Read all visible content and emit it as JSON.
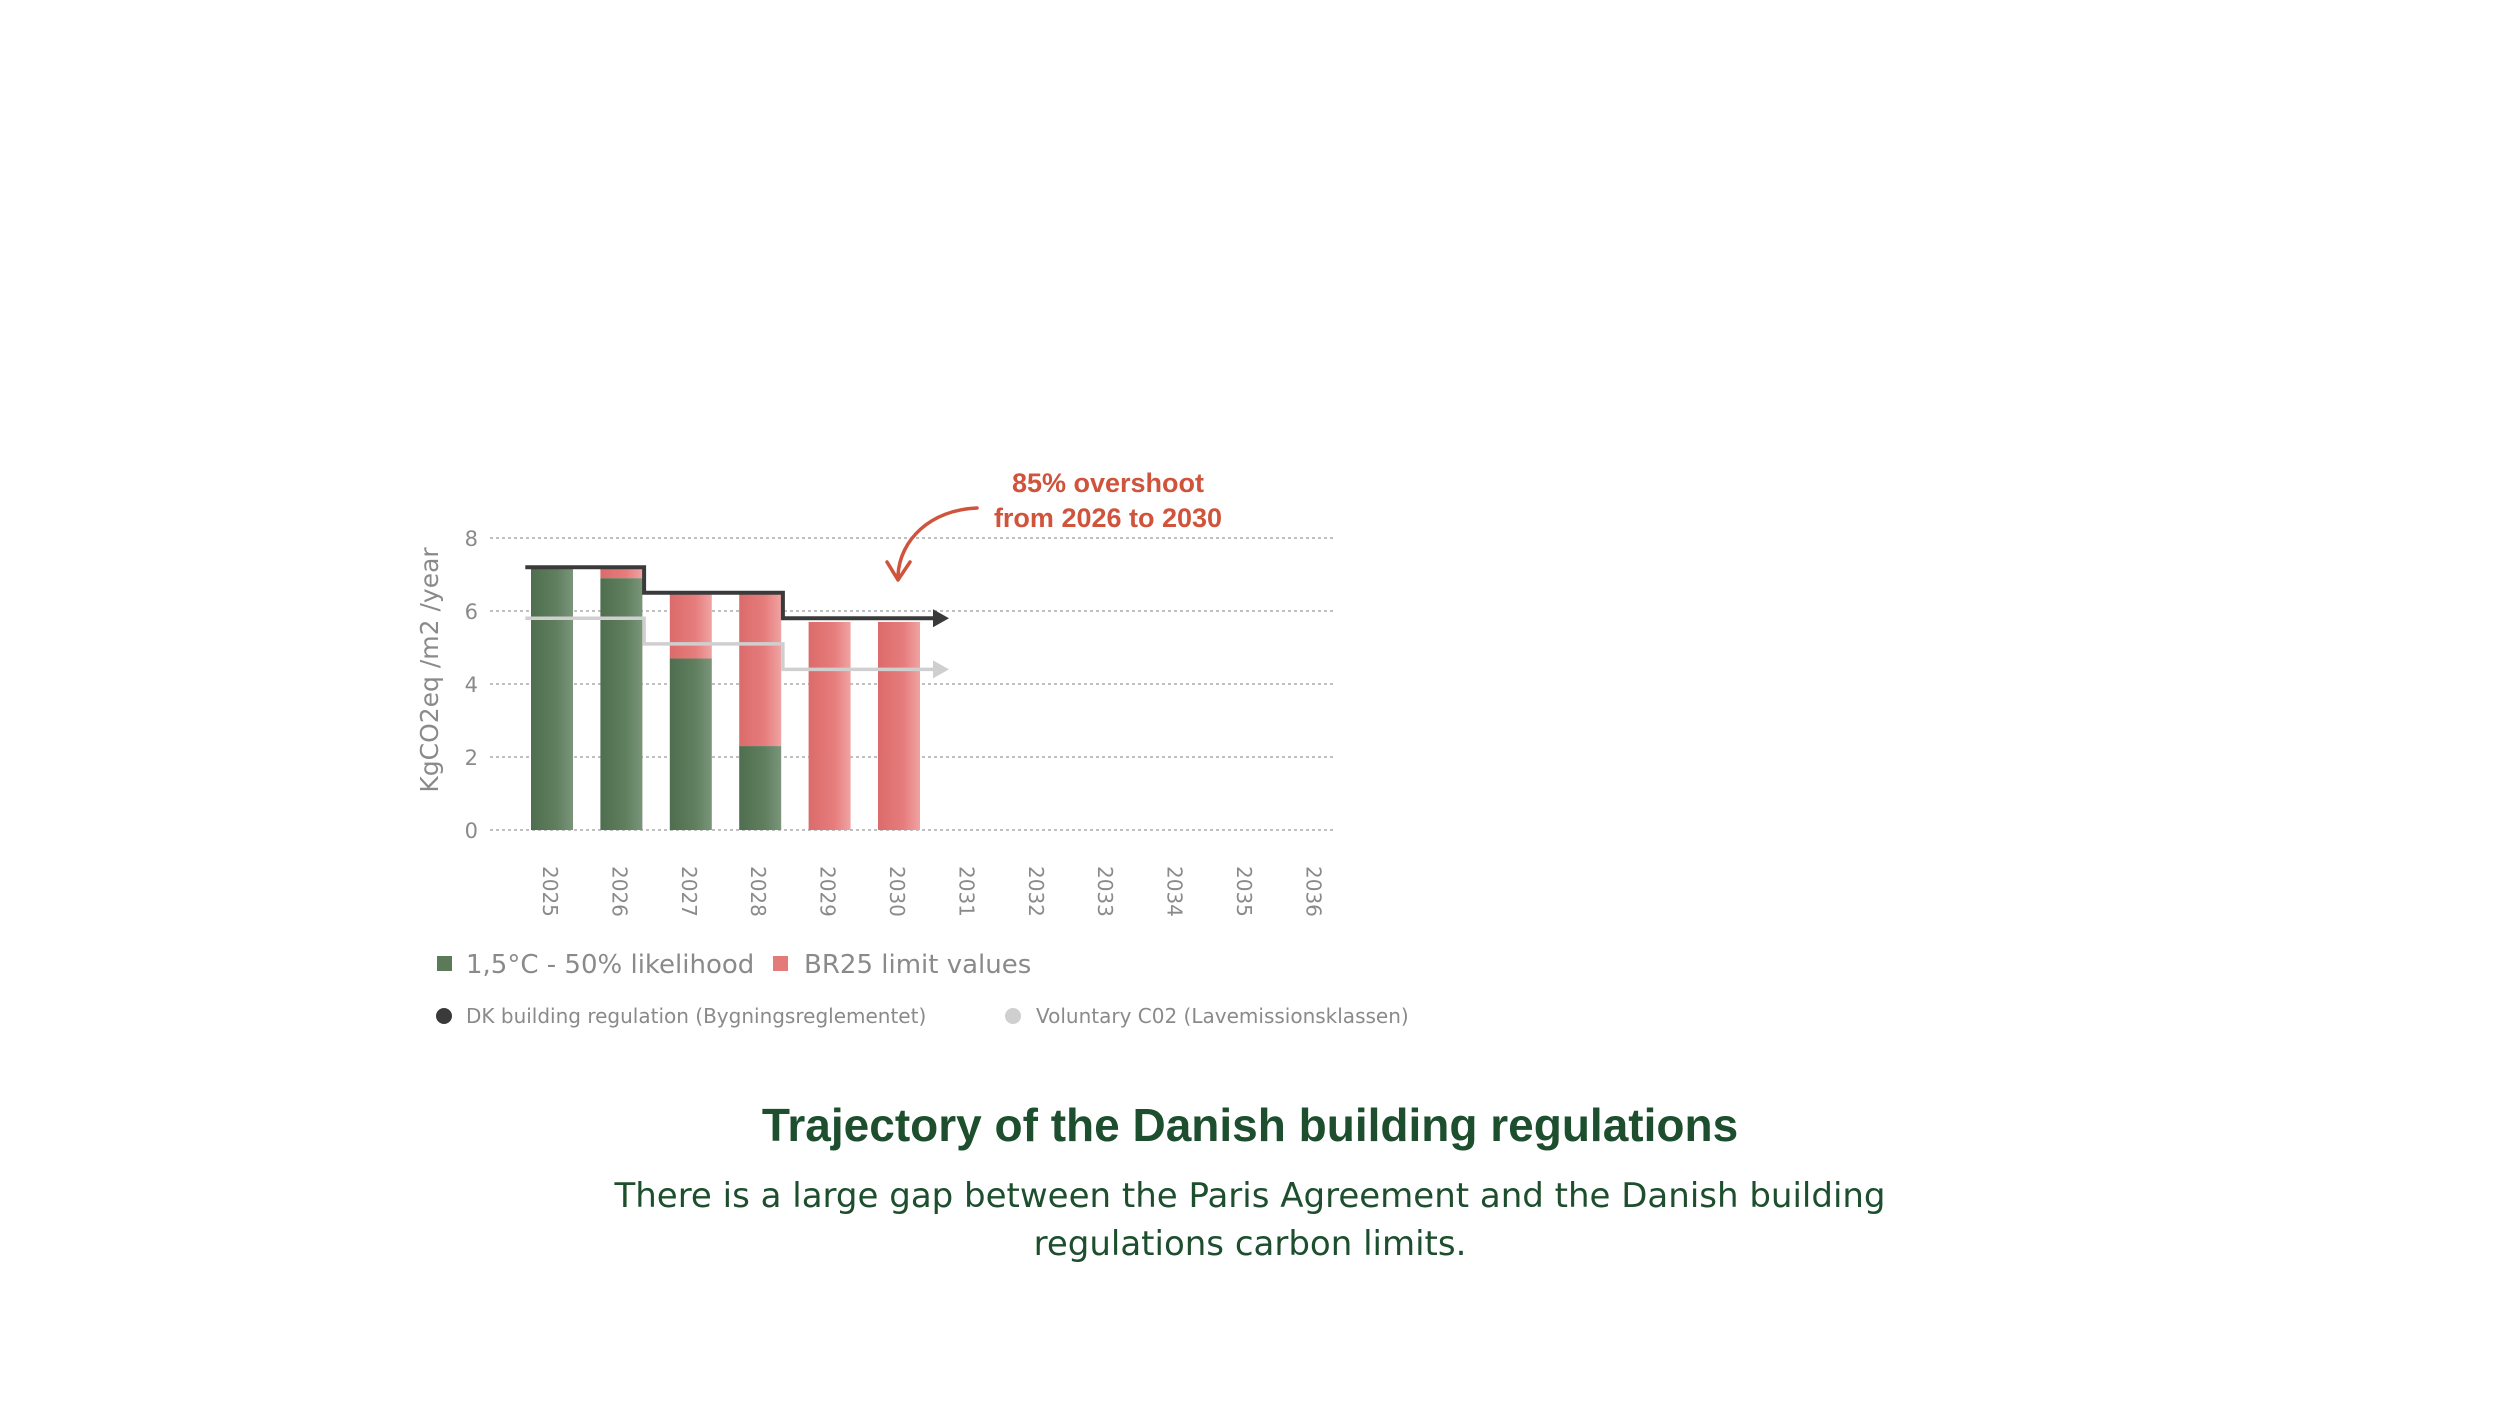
{
  "chart_data": {
    "type": "bar",
    "stacked": true,
    "categories": [
      "2025",
      "2026",
      "2027",
      "2028",
      "2029",
      "2030",
      "2031",
      "2032",
      "2033",
      "2034",
      "2035",
      "2036"
    ],
    "series": [
      {
        "name": "1,5°C - 50% likelihood",
        "color": "#5b7a5a",
        "values": [
          7.2,
          6.9,
          4.7,
          2.3,
          0,
          0,
          null,
          null,
          null,
          null,
          null,
          null
        ]
      },
      {
        "name": "BR25 limit values",
        "color": "#e57a7a",
        "values": [
          0,
          0.3,
          1.8,
          4.2,
          5.7,
          5.7,
          null,
          null,
          null,
          null,
          null,
          null
        ]
      }
    ],
    "lines": [
      {
        "name": "DK building regulation (Bygningsreglementet)",
        "color": "#3a3a3a",
        "steps": [
          {
            "from": "2025",
            "to": "2026",
            "value": 7.2
          },
          {
            "from": "2027",
            "to": "2028",
            "value": 6.5
          },
          {
            "from": "2029",
            "to": "2030",
            "value": 5.8
          }
        ]
      },
      {
        "name": "Voluntary C02 (Lavemissionsklassen)",
        "color": "#cfcfcf",
        "steps": [
          {
            "from": "2025",
            "to": "2026",
            "value": 5.8
          },
          {
            "from": "2027",
            "to": "2028",
            "value": 5.1
          },
          {
            "from": "2029",
            "to": "2030",
            "value": 4.4
          }
        ]
      }
    ],
    "ylabel": "KgCO2eq /m2 /year",
    "xlabel": "",
    "ylim": [
      0,
      8
    ],
    "yticks": [
      "0",
      "2",
      "4",
      "6",
      "8"
    ],
    "grid": true,
    "annotation": {
      "lines": [
        "85% overshoot",
        "from 2026 to 2030"
      ]
    },
    "legend_placement": "bottom"
  },
  "legend": {
    "row1": [
      {
        "label": "1,5°C - 50% likelihood",
        "color": "#5b7a5a"
      },
      {
        "label": "BR25 limit values",
        "color": "#e57a7a"
      }
    ],
    "row2": [
      {
        "label": "DK building regulation (Bygningsreglementet)",
        "color": "#3a3a3a"
      },
      {
        "label": "Voluntary C02 (Lavemissionsklassen)",
        "color": "#cfcfcf"
      }
    ]
  },
  "caption": {
    "title": "Trajectory of the Danish building regulations",
    "body_line1": "There is a large gap between the Paris Agreement and the Danish building",
    "body_line2": "regulations carbon limits."
  }
}
